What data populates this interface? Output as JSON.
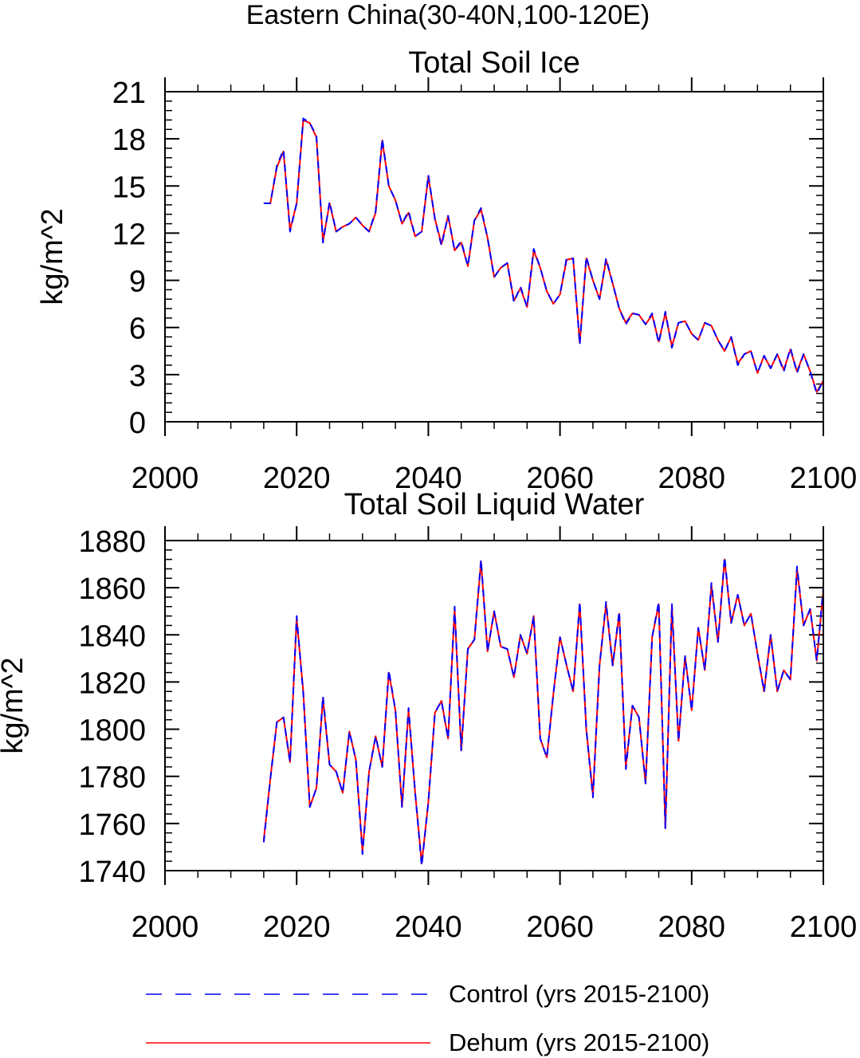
{
  "figure_title": "Eastern China(30-40N,100-120E)",
  "chart_data": [
    {
      "type": "line",
      "title": "Total Soil Ice",
      "xlabel": "",
      "ylabel": "kg/m^2",
      "xlim": [
        2000,
        2100
      ],
      "ylim": [
        0,
        21
      ],
      "x_ticks": [
        2000,
        2020,
        2040,
        2060,
        2080,
        2100
      ],
      "y_ticks": [
        0,
        3,
        6,
        9,
        12,
        15,
        18,
        21
      ],
      "x": [
        2015,
        2016,
        2017,
        2018,
        2019,
        2020,
        2021,
        2022,
        2023,
        2024,
        2025,
        2026,
        2027,
        2028,
        2029,
        2030,
        2031,
        2032,
        2033,
        2034,
        2035,
        2036,
        2037,
        2038,
        2039,
        2040,
        2041,
        2042,
        2043,
        2044,
        2045,
        2046,
        2047,
        2048,
        2049,
        2050,
        2051,
        2052,
        2053,
        2054,
        2055,
        2056,
        2057,
        2058,
        2059,
        2060,
        2061,
        2062,
        2063,
        2064,
        2065,
        2066,
        2067,
        2068,
        2069,
        2070,
        2071,
        2072,
        2073,
        2074,
        2075,
        2076,
        2077,
        2078,
        2079,
        2080,
        2081,
        2082,
        2083,
        2084,
        2085,
        2086,
        2087,
        2088,
        2089,
        2090,
        2091,
        2092,
        2093,
        2094,
        2095,
        2096,
        2097,
        2098,
        2099,
        2100
      ],
      "series": [
        {
          "name": "Control (yrs 2015-2100)",
          "color": "#0000ff",
          "dash": "dashed",
          "values": [
            13.9,
            13.9,
            16.3,
            17.3,
            12.1,
            13.9,
            19.3,
            19.0,
            18.2,
            11.4,
            14.0,
            12.1,
            12.4,
            12.6,
            13.0,
            12.5,
            12.1,
            13.4,
            18.0,
            15.0,
            14.1,
            12.6,
            13.4,
            11.8,
            12.1,
            15.7,
            12.9,
            11.2,
            13.1,
            10.9,
            11.5,
            9.9,
            12.8,
            13.6,
            11.7,
            9.2,
            9.8,
            10.1,
            7.6,
            8.6,
            7.3,
            11.0,
            9.8,
            8.3,
            7.5,
            8.1,
            10.4,
            10.4,
            4.9,
            10.5,
            9.0,
            7.8,
            10.4,
            8.8,
            7.2,
            6.2,
            6.9,
            6.8,
            6.2,
            6.9,
            5.0,
            7.0,
            4.7,
            6.3,
            6.4,
            5.6,
            5.2,
            6.3,
            6.1,
            5.2,
            4.5,
            5.4,
            3.6,
            4.3,
            4.5,
            3.1,
            4.2,
            3.4,
            4.3,
            3.2,
            4.7,
            3.1,
            4.3,
            3.2,
            1.8,
            2.6
          ]
        },
        {
          "name": "Dehum (yrs 2015-2100)",
          "color": "#ff0000",
          "dash": "solid",
          "values": [
            13.9,
            13.9,
            16.2,
            17.2,
            12.2,
            13.9,
            19.2,
            19.0,
            18.1,
            11.5,
            13.9,
            12.1,
            12.4,
            12.6,
            13.0,
            12.5,
            12.1,
            13.3,
            17.9,
            15.0,
            14.1,
            12.6,
            13.3,
            11.8,
            12.1,
            15.6,
            12.9,
            11.3,
            13.1,
            10.9,
            11.4,
            9.9,
            12.8,
            13.5,
            11.7,
            9.2,
            9.8,
            10.1,
            7.7,
            8.5,
            7.3,
            10.9,
            9.8,
            8.3,
            7.5,
            8.1,
            10.3,
            10.4,
            5.0,
            10.4,
            9.0,
            7.8,
            10.3,
            8.8,
            7.2,
            6.3,
            6.9,
            6.8,
            6.2,
            6.8,
            5.1,
            6.9,
            4.8,
            6.3,
            6.4,
            5.6,
            5.2,
            6.3,
            6.1,
            5.2,
            4.5,
            5.4,
            3.7,
            4.3,
            4.5,
            3.1,
            4.2,
            3.4,
            4.3,
            3.3,
            4.6,
            3.2,
            4.3,
            3.2,
            1.9,
            2.6
          ]
        }
      ]
    },
    {
      "type": "line",
      "title": "Total Soil Liquid Water",
      "xlabel": "",
      "ylabel": "kg/m^2",
      "xlim": [
        2000,
        2100
      ],
      "ylim": [
        1740,
        1880
      ],
      "x_ticks": [
        2000,
        2020,
        2040,
        2060,
        2080,
        2100
      ],
      "y_ticks": [
        1740,
        1760,
        1780,
        1800,
        1820,
        1840,
        1860,
        1880
      ],
      "x": [
        2015,
        2016,
        2017,
        2018,
        2019,
        2020,
        2021,
        2022,
        2023,
        2024,
        2025,
        2026,
        2027,
        2028,
        2029,
        2030,
        2031,
        2032,
        2033,
        2034,
        2035,
        2036,
        2037,
        2038,
        2039,
        2040,
        2041,
        2042,
        2043,
        2044,
        2045,
        2046,
        2047,
        2048,
        2049,
        2050,
        2051,
        2052,
        2053,
        2054,
        2055,
        2056,
        2057,
        2058,
        2059,
        2060,
        2061,
        2062,
        2063,
        2064,
        2065,
        2066,
        2067,
        2068,
        2069,
        2070,
        2071,
        2072,
        2073,
        2074,
        2075,
        2076,
        2077,
        2078,
        2079,
        2080,
        2081,
        2082,
        2083,
        2084,
        2085,
        2086,
        2087,
        2088,
        2089,
        2090,
        2091,
        2092,
        2093,
        2094,
        2095,
        2096,
        2097,
        2098,
        2099,
        2100
      ],
      "series": [
        {
          "name": "Control (yrs 2015-2100)",
          "color": "#0000ff",
          "dash": "dashed",
          "values": [
            1752,
            1779,
            1803,
            1805,
            1786,
            1848,
            1815,
            1767,
            1775,
            1814,
            1785,
            1782,
            1773,
            1799,
            1787,
            1747,
            1782,
            1797,
            1784,
            1825,
            1808,
            1767,
            1809,
            1773,
            1742,
            1769,
            1807,
            1812,
            1796,
            1852,
            1791,
            1834,
            1838,
            1872,
            1833,
            1850,
            1835,
            1834,
            1822,
            1840,
            1832,
            1848,
            1796,
            1788,
            1815,
            1839,
            1827,
            1816,
            1854,
            1800,
            1771,
            1827,
            1854,
            1827,
            1850,
            1783,
            1810,
            1805,
            1777,
            1839,
            1854,
            1758,
            1853,
            1795,
            1831,
            1808,
            1843,
            1825,
            1862,
            1837,
            1873,
            1845,
            1857,
            1844,
            1849,
            1832,
            1816,
            1840,
            1816,
            1825,
            1821,
            1869,
            1844,
            1851,
            1829,
            1860
          ]
        },
        {
          "name": "Dehum (yrs 2015-2100)",
          "color": "#ff0000",
          "dash": "solid",
          "values": [
            1753,
            1779,
            1803,
            1805,
            1786,
            1847,
            1816,
            1767,
            1775,
            1813,
            1785,
            1782,
            1773,
            1799,
            1787,
            1748,
            1782,
            1797,
            1784,
            1824,
            1808,
            1767,
            1808,
            1773,
            1743,
            1769,
            1807,
            1812,
            1796,
            1851,
            1791,
            1834,
            1838,
            1871,
            1833,
            1850,
            1835,
            1834,
            1822,
            1840,
            1832,
            1848,
            1796,
            1788,
            1815,
            1839,
            1827,
            1816,
            1853,
            1800,
            1772,
            1827,
            1853,
            1827,
            1849,
            1784,
            1810,
            1805,
            1777,
            1839,
            1853,
            1758,
            1852,
            1795,
            1831,
            1808,
            1843,
            1825,
            1861,
            1837,
            1872,
            1845,
            1857,
            1844,
            1849,
            1832,
            1816,
            1840,
            1816,
            1825,
            1821,
            1868,
            1844,
            1851,
            1829,
            1859
          ]
        }
      ]
    }
  ],
  "legend": [
    {
      "label": "Control (yrs 2015-2100)",
      "color": "#0000ff",
      "dash": "dashed"
    },
    {
      "label": "Dehum (yrs 2015-2100)",
      "color": "#ff0000",
      "dash": "solid"
    }
  ]
}
